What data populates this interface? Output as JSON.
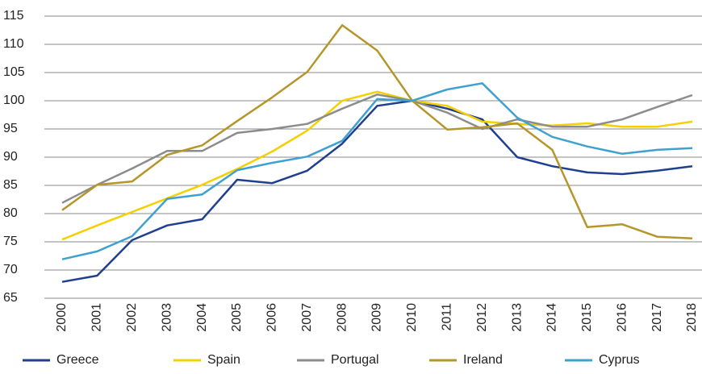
{
  "chart_data": {
    "type": "line",
    "categories": [
      "2000",
      "2001",
      "2002",
      "2003",
      "2004",
      "2005",
      "2006",
      "2007",
      "2008",
      "2009",
      "2010",
      "2011",
      "2012",
      "2013",
      "2014",
      "2015",
      "2016",
      "2017",
      "2018"
    ],
    "series": [
      {
        "name": "Greece",
        "color": "#1f3f8f",
        "values": [
          67.9,
          69,
          75.3,
          77.9,
          79,
          86,
          85.4,
          87.6,
          92.4,
          99.1,
          100,
          98.6,
          96.7,
          90,
          88.4,
          87.3,
          87,
          87.6,
          88.4
        ]
      },
      {
        "name": "Spain",
        "color": "#f5d000",
        "values": [
          75.4,
          77.9,
          80.3,
          82.7,
          85.1,
          87.9,
          91,
          94.7,
          100,
          101.6,
          100,
          99.1,
          96.3,
          95.9,
          95.6,
          96,
          95.4,
          95.4,
          96.3
        ]
      },
      {
        "name": "Portugal",
        "color": "#8c8c8c",
        "values": [
          81.9,
          85.1,
          88,
          91.1,
          91.1,
          94.3,
          95,
          95.9,
          98.6,
          101.1,
          100,
          97.9,
          95,
          96.7,
          95.4,
          95.4,
          96.7,
          98.9,
          101
        ]
      },
      {
        "name": "Ireland",
        "color": "#b5962a",
        "values": [
          80.6,
          85.1,
          85.7,
          90.4,
          92.1,
          96.4,
          100.6,
          105.1,
          113.4,
          108.9,
          100,
          94.9,
          95.3,
          96,
          91.3,
          77.6,
          78.1,
          75.9,
          75.6
        ]
      },
      {
        "name": "Cyprus",
        "color": "#3fa1d0",
        "values": [
          71.9,
          73.3,
          76,
          82.6,
          83.4,
          87.7,
          89,
          90.1,
          92.9,
          100.3,
          100,
          102,
          103.1,
          97,
          93.6,
          91.9,
          90.6,
          91.3,
          91.6
        ]
      }
    ],
    "ylim": [
      65,
      115
    ],
    "yticks": [
      65,
      70,
      75,
      80,
      85,
      90,
      95,
      100,
      105,
      110,
      115
    ],
    "grid": true
  }
}
